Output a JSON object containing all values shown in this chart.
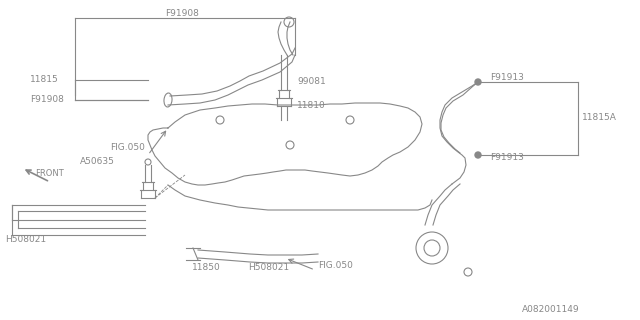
{
  "background_color": "#ffffff",
  "line_color": "#888888",
  "text_color": "#888888",
  "part_number": "A082001149",
  "labels": {
    "F91908_top": "F91908",
    "F91908_bottom": "F91908",
    "11815": "11815",
    "99081": "99081",
    "11810": "11810",
    "F91913_top": "F91913",
    "F91913_bottom": "F91913",
    "11815A": "11815A",
    "FRONT": "FRONT",
    "FIG050_top": "FIG.050",
    "FIG050_bottom": "FIG.050",
    "A50635": "A50635",
    "H508021_left": "H508021",
    "H508021_right": "H508021",
    "11850": "11850"
  },
  "figsize": [
    6.4,
    3.2
  ],
  "dpi": 100
}
